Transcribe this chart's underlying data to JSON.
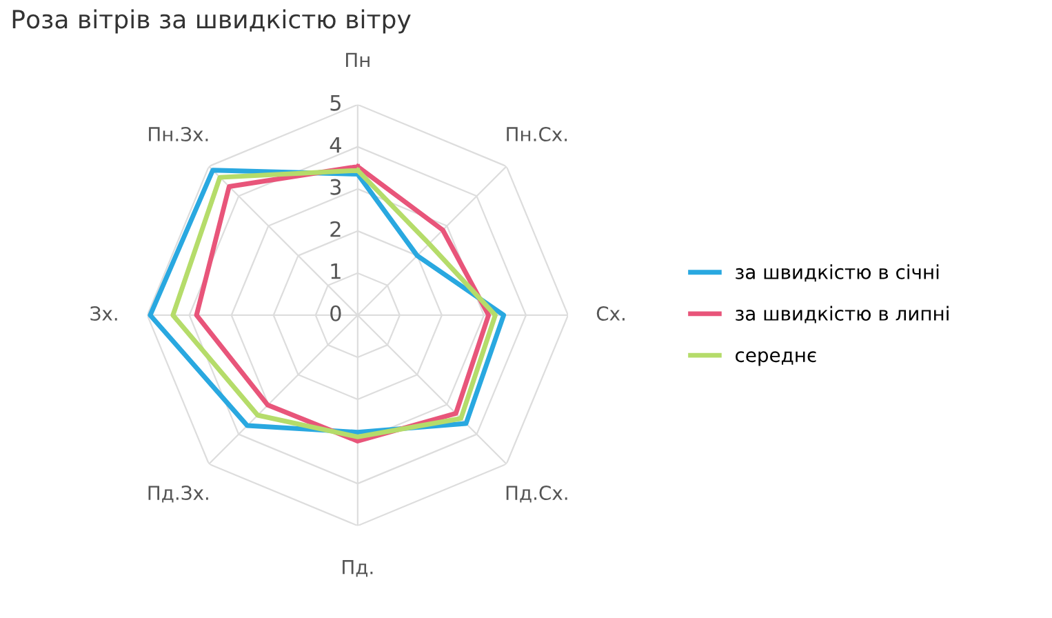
{
  "chart_data": {
    "type": "radar",
    "title": "Роза вітрів за швидкістю вітру",
    "categories": [
      "Пн",
      "Пн.Сх.",
      "Сх.",
      "Пд.Сх.",
      "Пд.",
      "Пд.Зх.",
      "Зх.",
      "Пн.Зх."
    ],
    "series": [
      {
        "name": "за швидкістю в січні",
        "color": "#29a8e0",
        "values": [
          3.35,
          2.0,
          3.47,
          3.64,
          2.78,
          3.71,
          4.93,
          4.87
        ]
      },
      {
        "name": "за швидкістю в липні",
        "color": "#e8557a",
        "values": [
          3.53,
          2.86,
          3.11,
          3.3,
          2.99,
          3.02,
          3.83,
          4.32
        ]
      },
      {
        "name": "середнє",
        "color": "#b5dc6a",
        "values": [
          3.44,
          2.4,
          3.27,
          3.47,
          2.89,
          3.36,
          4.39,
          4.63
        ]
      }
    ],
    "ylim": [
      0,
      5
    ],
    "yticks": [
      0,
      1,
      2,
      3,
      4,
      5
    ],
    "grid": true,
    "legend": "right"
  }
}
